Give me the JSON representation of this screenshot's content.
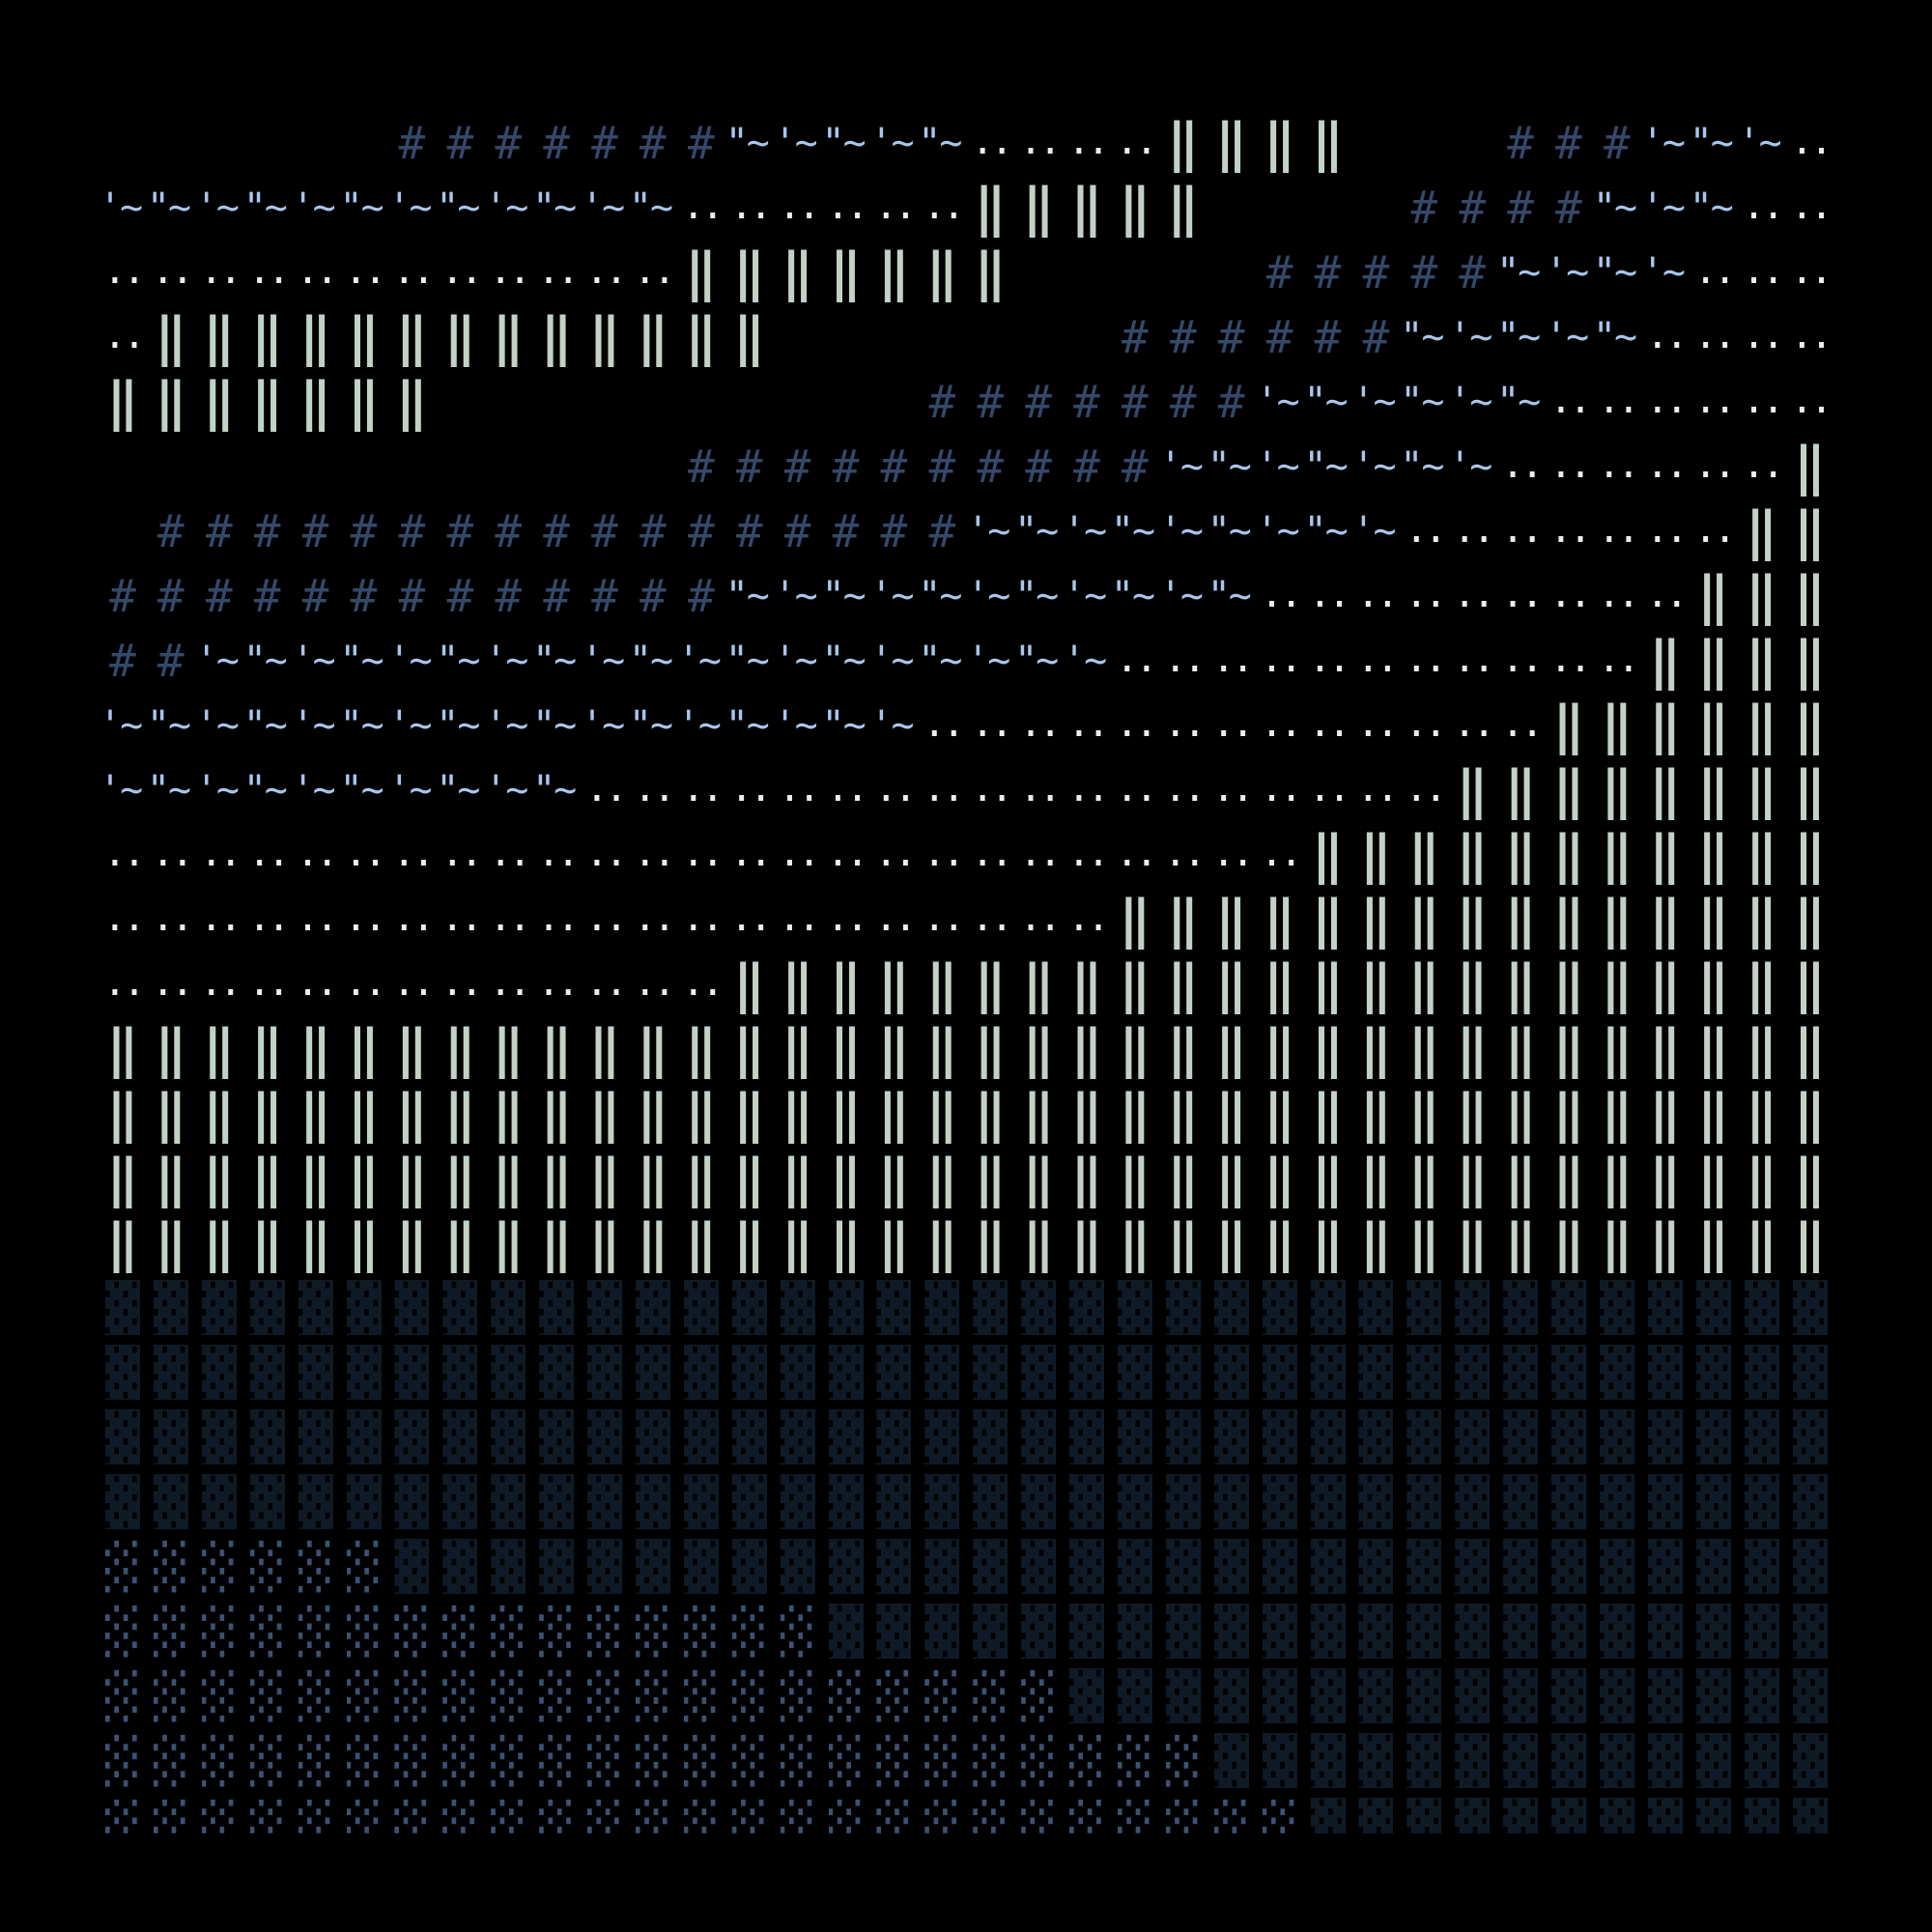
{
  "art": {
    "rows": [
      ".....                  ...         .",
      "      #######~~~~~....||||   ###~~~.",
      "~~~~~~~~~~~~......|||||    ####~~~..",
      "............|||||||     #####~~~~...",
      ".|||||||||||||       ######~~~~~....",
      "|||||||          #######~~~~~~......",
      "            ##########~~~~~~~......|",
      " #################~~~~~~~~~.......||",
      "#############~~~~~~~~~~~.........|||",
      "##~~~~~~~~~~~~~~~~~~~...........||||",
      "~~~~~~~~~~~~~~~~~.............||||||",
      "~~~~~~~~~~..................||||||||",
      ".........................|||||||||||",
      ".....................|||||||||||||||",
      ".............|||||||||||||||||||||||",
      "||||||||||||||||||||||||||||||||||||",
      "||||||||||||||||||||||||||||||||||||",
      "||||||||||||||||||||||||||||||||||||",
      "||||||||||||||||||||||||||||||||||||",
      "BBBBBBBBBBBBBBBBBBBBBBBBBBBBBBBBBBBB",
      "BBBBBBBBBBBBBBBBBBBBBBBBBBBBBBBBBBBB",
      "BBBBBBBBBBBBBBBBBBBBBBBBBBBBBBBBBBBB",
      "BBBBBBBBBBBBBBBBBBBBBBBBBBBBBBBBBBBB",
      "LLLLLLBBBBBBBBBBBBBBBBBBBBBBBBBBBBBB",
      "LLLLLLLLLLLLLLLBBBBBBBBBBBBBBBBBBBBB",
      "LLLLLLLLLLLLLLLLLLLLBBBBBBBBBBBBBBBB",
      "LLLLLLLLLLLLLLLLLLLLLLLBBBBBBBBBBBBB",
      "LLLLLLLLLLLLLLLLLLLLLLLLLBBBBBBBBBBB"
    ],
    "glyphs": {
      "#": {
        "text": "#",
        "name": "hash-glyph",
        "cls": "c-hash",
        "color": "#34496a"
      },
      "~": {
        "texts": [
          "'~",
          "\"~"
        ],
        "name": "wave-glyph",
        "cls": "c-wave",
        "color": "#a9c6ea"
      },
      ".": {
        "text": "..",
        "name": "dots-glyph",
        "cls": "c-dots",
        "color": "#eceeea"
      },
      "|": {
        "text": "‖",
        "name": "double-bar-glyph",
        "cls": "c-bar",
        "color": "#c2d2c6"
      },
      "B": {
        "text": "▓",
        "name": "dark-shade-block",
        "cls": "c-blk",
        "color": "#0e1b27"
      },
      "L": {
        "text": "░",
        "name": "light-shade-block",
        "cls": "c-blk",
        "color": "#3b5274"
      }
    },
    "background": "#000000"
  }
}
